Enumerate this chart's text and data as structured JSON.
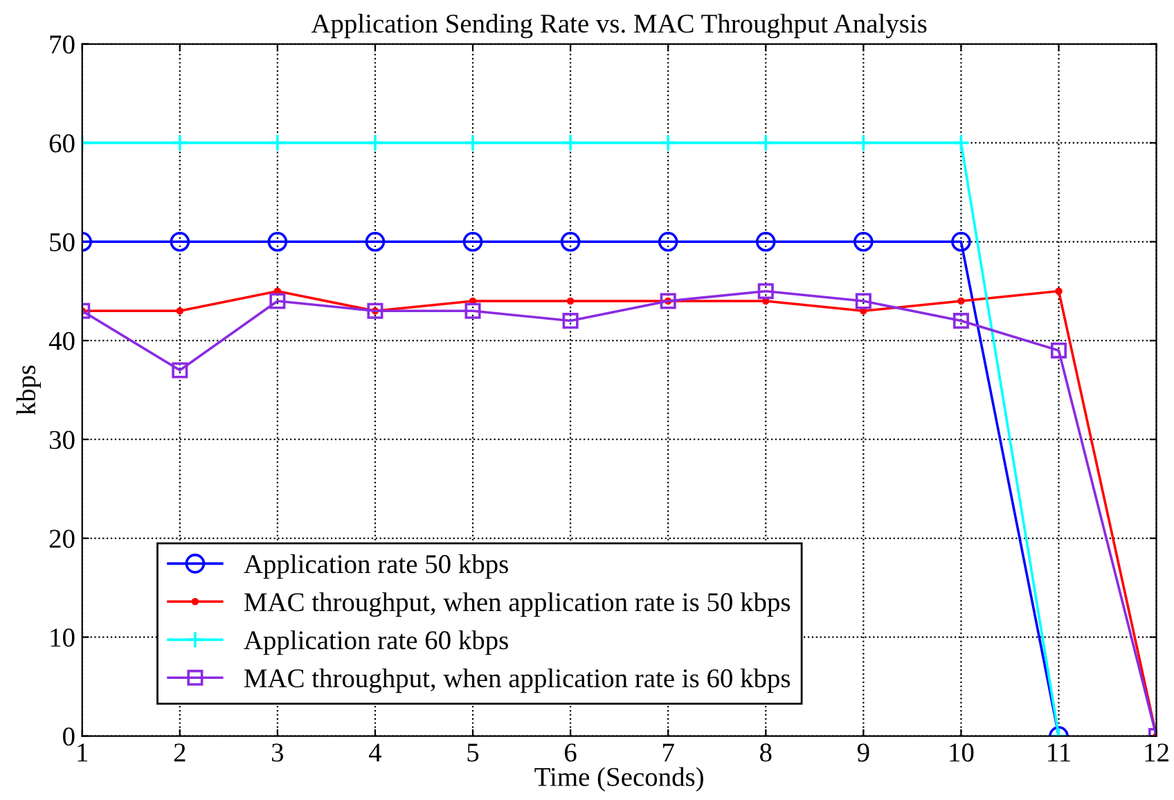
{
  "chart_data": {
    "type": "line",
    "title": "Application Sending Rate vs. MAC Throughput Analysis",
    "xlabel": "Time (Seconds)",
    "ylabel": "kbps",
    "x": [
      1,
      2,
      3,
      4,
      5,
      6,
      7,
      8,
      9,
      10,
      11,
      12
    ],
    "series": [
      {
        "name": "Application rate 50 kbps",
        "color": "#0000ff",
        "marker": "circle",
        "values": [
          50,
          50,
          50,
          50,
          50,
          50,
          50,
          50,
          50,
          50,
          0,
          null
        ]
      },
      {
        "name": "MAC throughput, when application rate is 50 kbps",
        "color": "#ff0000",
        "marker": "point",
        "values": [
          43,
          43,
          45,
          43,
          44,
          44,
          44,
          44,
          43,
          44,
          45,
          0
        ]
      },
      {
        "name": "Application rate 60 kbps",
        "color": "#00ffff",
        "marker": "cross",
        "values": [
          60,
          60,
          60,
          60,
          60,
          60,
          60,
          60,
          60,
          60,
          0,
          null
        ]
      },
      {
        "name": "MAC throughput, when application rate is 60 kbps",
        "color": "#8a2be2",
        "marker": "square",
        "values": [
          43,
          37,
          44,
          43,
          43,
          42,
          44,
          45,
          44,
          42,
          39,
          0
        ]
      }
    ],
    "xlim": [
      1,
      12
    ],
    "xticks": [
      1,
      2,
      3,
      4,
      5,
      6,
      7,
      8,
      9,
      10,
      11,
      12
    ],
    "ylim": [
      0,
      70
    ],
    "yticks": [
      0,
      10,
      20,
      30,
      40,
      50,
      60,
      70
    ],
    "grid": true,
    "legend": "bottom left",
    "line_style": "solid"
  }
}
